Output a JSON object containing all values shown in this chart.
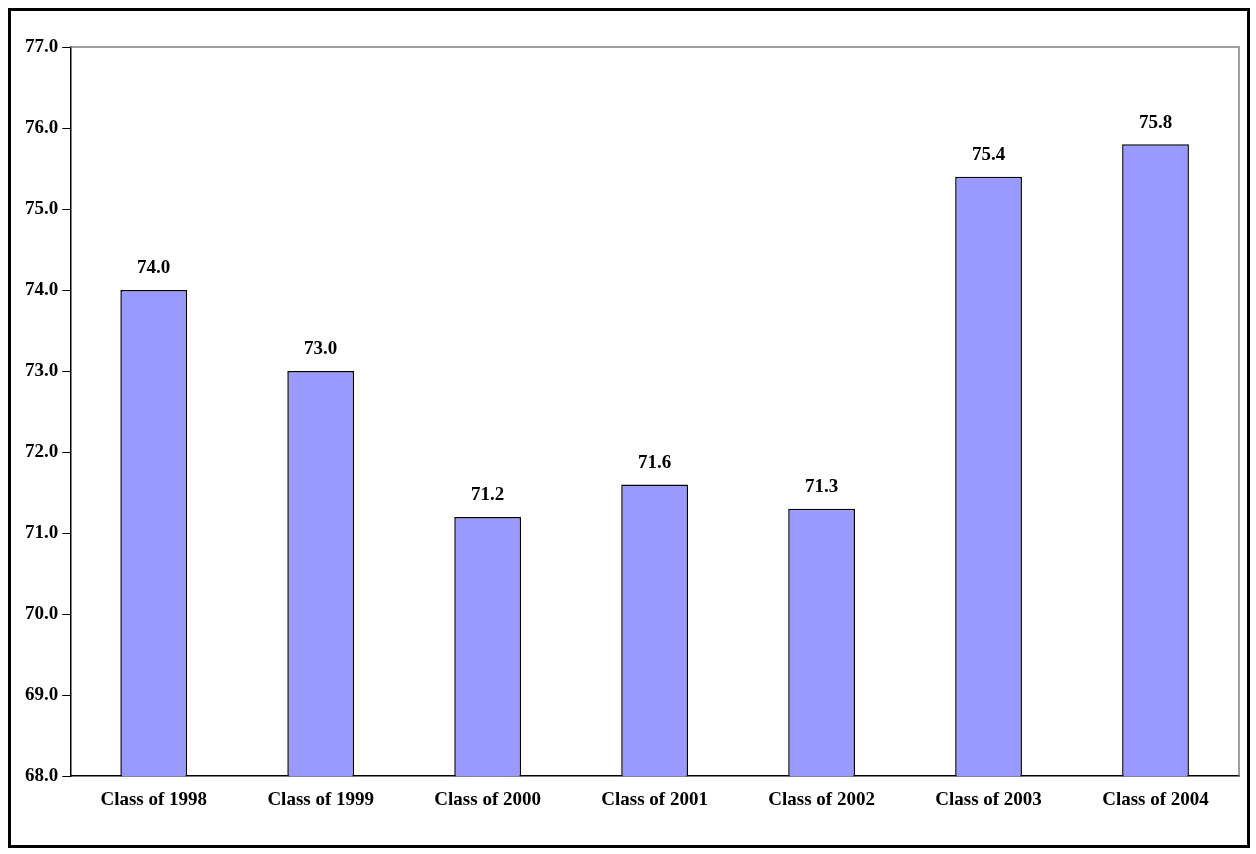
{
  "chart_data": {
    "type": "bar",
    "categories": [
      "Class of 1998",
      "Class of 1999",
      "Class of 2000",
      "Class of 2001",
      "Class of 2002",
      "Class of 2003",
      "Class of 2004"
    ],
    "values": [
      74.0,
      73.0,
      71.2,
      71.6,
      71.3,
      75.4,
      75.8
    ],
    "color": "#9999ff",
    "ylim": [
      68,
      77
    ],
    "yticks": [
      {
        "value": 68,
        "label": "68.0"
      },
      {
        "value": 69,
        "label": "69.0"
      },
      {
        "value": 70,
        "label": "70.0"
      },
      {
        "value": 71,
        "label": "71.0"
      },
      {
        "value": 72,
        "label": "72.0"
      },
      {
        "value": 73,
        "label": "73.0"
      },
      {
        "value": 74,
        "label": "74.0"
      },
      {
        "value": 75,
        "label": "75.0"
      },
      {
        "value": 76,
        "label": "76.0"
      },
      {
        "value": 77,
        "label": "77.0"
      }
    ],
    "value_labels": [
      "74.0",
      "73.0",
      "71.2",
      "71.6",
      "71.3",
      "75.4",
      "75.8"
    ],
    "grid": false,
    "legend": false
  }
}
